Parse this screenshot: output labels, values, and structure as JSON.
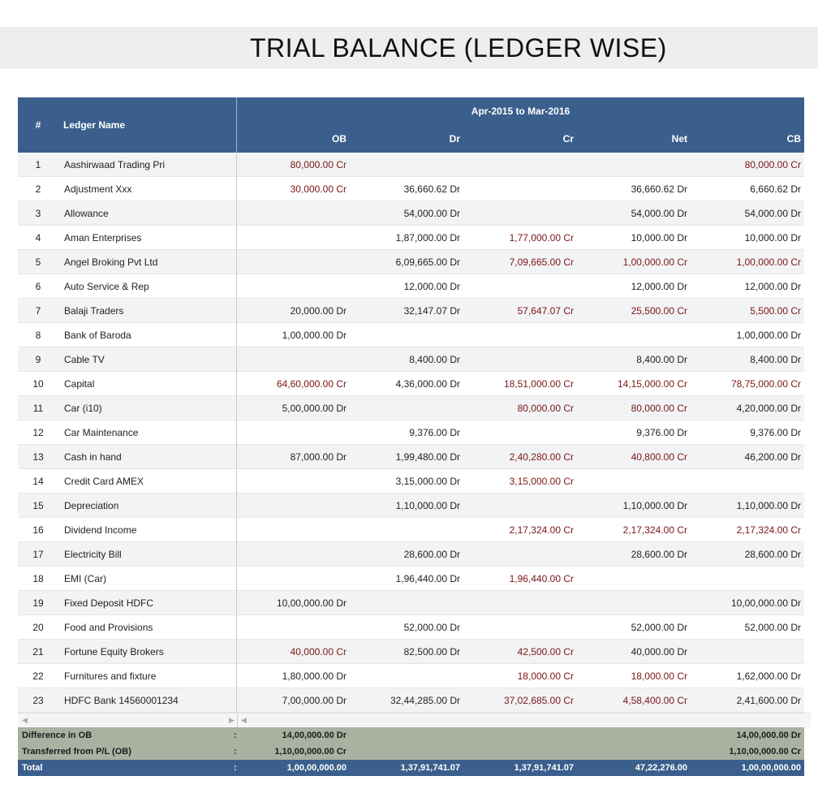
{
  "report": {
    "title": "TRIAL BALANCE (LEDGER WISE)",
    "period": "Apr-2015 to Mar-2016"
  },
  "columns": {
    "num": "#",
    "name": "Ledger Name",
    "ob": "OB",
    "dr": "Dr",
    "cr": "Cr",
    "net": "Net",
    "cb": "CB"
  },
  "colors": {
    "header": "#3a5f8c",
    "credit_text": "#7a1515",
    "summary_band": "#a9b1a0"
  },
  "rows": [
    {
      "num": "1",
      "name": "Aashirwaad Trading Pri",
      "ob": "80,000.00 Cr",
      "dr": "",
      "cr": "",
      "net": "",
      "cb": "80,000.00 Cr"
    },
    {
      "num": "2",
      "name": "Adjustment Xxx",
      "ob": "30,000.00 Cr",
      "dr": "36,660.62 Dr",
      "cr": "",
      "net": "36,660.62 Dr",
      "cb": "6,660.62 Dr"
    },
    {
      "num": "3",
      "name": "Allowance",
      "ob": "",
      "dr": "54,000.00 Dr",
      "cr": "",
      "net": "54,000.00 Dr",
      "cb": "54,000.00 Dr"
    },
    {
      "num": "4",
      "name": "Aman Enterprises",
      "ob": "",
      "dr": "1,87,000.00 Dr",
      "cr": "1,77,000.00 Cr",
      "net": "10,000.00 Dr",
      "cb": "10,000.00 Dr"
    },
    {
      "num": "5",
      "name": "Angel Broking Pvt Ltd",
      "ob": "",
      "dr": "6,09,665.00 Dr",
      "cr": "7,09,665.00 Cr",
      "net": "1,00,000.00 Cr",
      "cb": "1,00,000.00 Cr"
    },
    {
      "num": "6",
      "name": "Auto Service & Rep",
      "ob": "",
      "dr": "12,000.00 Dr",
      "cr": "",
      "net": "12,000.00 Dr",
      "cb": "12,000.00 Dr"
    },
    {
      "num": "7",
      "name": "Balaji Traders",
      "ob": "20,000.00 Dr",
      "dr": "32,147.07 Dr",
      "cr": "57,647.07 Cr",
      "net": "25,500.00 Cr",
      "cb": "5,500.00 Cr"
    },
    {
      "num": "8",
      "name": "Bank of Baroda",
      "ob": "1,00,000.00 Dr",
      "dr": "",
      "cr": "",
      "net": "",
      "cb": "1,00,000.00 Dr"
    },
    {
      "num": "9",
      "name": "Cable TV",
      "ob": "",
      "dr": "8,400.00 Dr",
      "cr": "",
      "net": "8,400.00 Dr",
      "cb": "8,400.00 Dr"
    },
    {
      "num": "10",
      "name": "Capital",
      "ob": "64,60,000.00 Cr",
      "dr": "4,36,000.00 Dr",
      "cr": "18,51,000.00 Cr",
      "net": "14,15,000.00 Cr",
      "cb": "78,75,000.00 Cr"
    },
    {
      "num": "11",
      "name": "Car (i10)",
      "ob": "5,00,000.00 Dr",
      "dr": "",
      "cr": "80,000.00 Cr",
      "net": "80,000.00 Cr",
      "cb": "4,20,000.00 Dr"
    },
    {
      "num": "12",
      "name": "Car Maintenance",
      "ob": "",
      "dr": "9,376.00 Dr",
      "cr": "",
      "net": "9,376.00 Dr",
      "cb": "9,376.00 Dr"
    },
    {
      "num": "13",
      "name": "Cash in hand",
      "ob": "87,000.00 Dr",
      "dr": "1,99,480.00 Dr",
      "cr": "2,40,280.00 Cr",
      "net": "40,800.00 Cr",
      "cb": "46,200.00 Dr"
    },
    {
      "num": "14",
      "name": "Credit Card AMEX",
      "ob": "",
      "dr": "3,15,000.00 Dr",
      "cr": "3,15,000.00 Cr",
      "net": "",
      "cb": ""
    },
    {
      "num": "15",
      "name": "Depreciation",
      "ob": "",
      "dr": "1,10,000.00 Dr",
      "cr": "",
      "net": "1,10,000.00 Dr",
      "cb": "1,10,000.00 Dr"
    },
    {
      "num": "16",
      "name": "Dividend Income",
      "ob": "",
      "dr": "",
      "cr": "2,17,324.00 Cr",
      "net": "2,17,324.00 Cr",
      "cb": "2,17,324.00 Cr"
    },
    {
      "num": "17",
      "name": "Electricity Bill",
      "ob": "",
      "dr": "28,600.00 Dr",
      "cr": "",
      "net": "28,600.00 Dr",
      "cb": "28,600.00 Dr"
    },
    {
      "num": "18",
      "name": "EMI (Car)",
      "ob": "",
      "dr": "1,96,440.00 Dr",
      "cr": "1,96,440.00 Cr",
      "net": "",
      "cb": ""
    },
    {
      "num": "19",
      "name": "Fixed Deposit HDFC",
      "ob": "10,00,000.00 Dr",
      "dr": "",
      "cr": "",
      "net": "",
      "cb": "10,00,000.00 Dr"
    },
    {
      "num": "20",
      "name": "Food and Provisions",
      "ob": "",
      "dr": "52,000.00 Dr",
      "cr": "",
      "net": "52,000.00 Dr",
      "cb": "52,000.00 Dr"
    },
    {
      "num": "21",
      "name": "Fortune Equity Brokers",
      "ob": "40,000.00 Cr",
      "dr": "82,500.00 Dr",
      "cr": "42,500.00 Cr",
      "net": "40,000.00 Dr",
      "cb": ""
    },
    {
      "num": "22",
      "name": "Furnitures and fixture",
      "ob": "1,80,000.00 Dr",
      "dr": "",
      "cr": "18,000.00 Cr",
      "net": "18,000.00 Cr",
      "cb": "1,62,000.00 Dr"
    },
    {
      "num": "23",
      "name": "HDFC Bank 14560001234",
      "ob": "7,00,000.00 Dr",
      "dr": "32,44,285.00 Dr",
      "cr": "37,02,685.00 Cr",
      "net": "4,58,400.00 Cr",
      "cb": "2,41,600.00 Dr"
    }
  ],
  "footer": {
    "colon": ":",
    "difference_ob": {
      "label": "Difference in OB",
      "ob": "14,00,000.00 Dr",
      "cb": "14,00,000.00 Dr"
    },
    "transferred_pl": {
      "label": "Transferred from P/L (OB)",
      "ob": "1,10,00,000.00 Cr",
      "cb": "1,10,00,000.00 Cr"
    },
    "total": {
      "label": "Total",
      "ob": "1,00,00,000.00",
      "dr": "1,37,91,741.07",
      "cr": "1,37,91,741.07",
      "net": "47,22,276.00",
      "cb": "1,00,00,000.00"
    }
  },
  "scroll": {
    "left_arrow": "◀",
    "right_arrow": "▶"
  }
}
